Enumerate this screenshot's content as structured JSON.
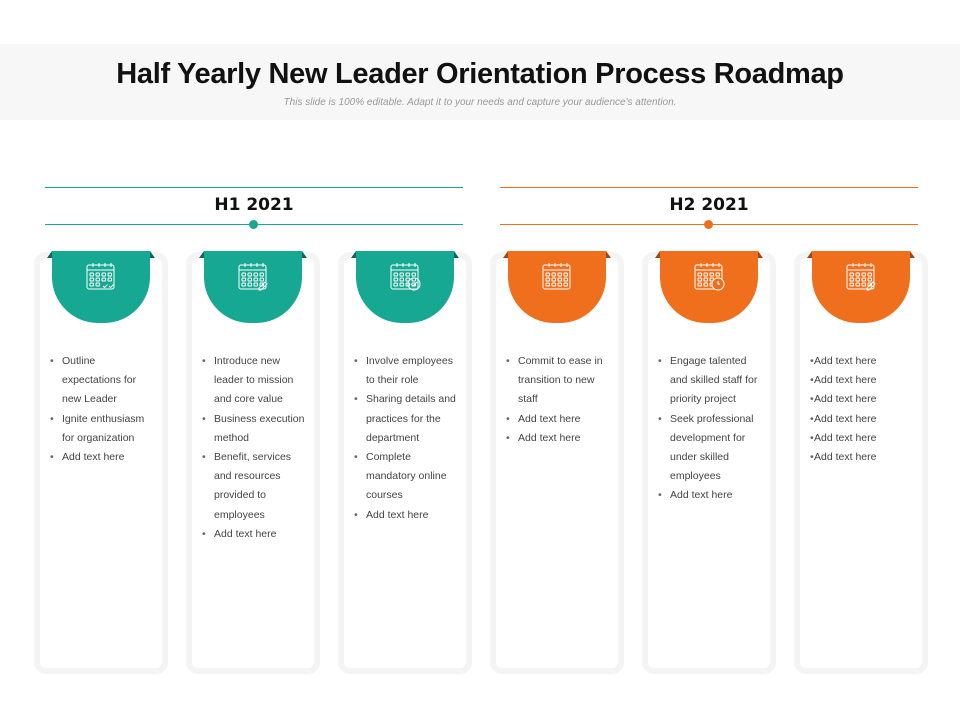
{
  "header": {
    "title": "Half Yearly New Leader Orientation Process Roadmap",
    "subtitle": "This slide is 100% editable. Adapt it to your needs and capture your audience's attention."
  },
  "colors": {
    "teal": "#16a892",
    "teal_dark": "#0d6b5d",
    "orange": "#ef6f1d",
    "orange_dark": "#a0480e"
  },
  "phases": [
    {
      "label": "H1 2021",
      "color": "teal"
    },
    {
      "label": "H2 2021",
      "color": "orange"
    }
  ],
  "cards": [
    {
      "icon": "calendar-check-icon",
      "color": "teal",
      "bullets": [
        "Outline expectations for new Leader",
        "Ignite enthusiasm for organization",
        "Add text here"
      ]
    },
    {
      "icon": "calendar-edit-icon",
      "color": "teal",
      "bullets": [
        "Introduce new leader to mission and core value",
        "Business execution method",
        "Benefit, services and resources provided to employees",
        "Add text here"
      ]
    },
    {
      "icon": "calendar-approved-icon",
      "color": "teal",
      "bullets": [
        "Involve employees to their role",
        "Sharing details and practices for the department",
        "Complete mandatory online courses",
        "Add text here"
      ]
    },
    {
      "icon": "calendar-icon",
      "color": "orange",
      "bullets": [
        "Commit  to ease in transition to new staff",
        "Add text here",
        "Add text here"
      ]
    },
    {
      "icon": "calendar-clock-icon",
      "color": "orange",
      "bullets": [
        "Engage talented and skilled staff for priority project",
        "Seek professional development for under skilled employees",
        "Add text here"
      ]
    },
    {
      "icon": "calendar-edit-icon",
      "color": "orange",
      "bullets": [
        "Add text here",
        "Add text here",
        "Add text here",
        "Add text here",
        "Add text here",
        "Add text here"
      ]
    }
  ]
}
